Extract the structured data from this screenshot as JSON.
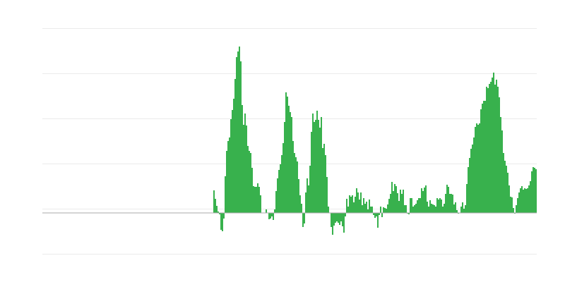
{
  "chart_data": {
    "type": "bar",
    "title": "",
    "xlabel": "",
    "ylabel": "",
    "grid": true,
    "ylim": [
      -98,
      262
    ],
    "colors": {
      "bar": "#38b14d",
      "grid": "#ebebeb",
      "zero_line": "#aaaaaa"
    },
    "values": [
      null,
      null,
      null,
      null,
      null,
      null,
      null,
      null,
      null,
      null,
      null,
      null,
      null,
      null,
      null,
      null,
      null,
      null,
      null,
      null,
      null,
      null,
      null,
      null,
      null,
      null,
      null,
      null,
      null,
      null,
      null,
      null,
      null,
      null,
      null,
      null,
      null,
      null,
      null,
      null,
      null,
      null,
      null,
      null,
      null,
      null,
      null,
      null,
      null,
      null,
      null,
      null,
      null,
      null,
      null,
      null,
      null,
      null,
      null,
      null,
      null,
      null,
      null,
      null,
      null,
      null,
      null,
      null,
      null,
      null,
      null,
      null,
      null,
      null,
      null,
      null,
      null,
      null,
      null,
      null,
      null,
      null,
      null,
      null,
      null,
      null,
      null,
      null,
      null,
      null,
      null,
      null,
      null,
      null,
      null,
      null,
      null,
      null,
      null,
      null,
      null,
      null,
      null,
      null,
      null,
      null,
      null,
      null,
      null,
      null,
      null,
      null,
      null,
      null,
      null,
      null,
      null,
      null,
      null,
      null,
      null,
      32,
      20,
      10,
      2,
      -2,
      -24,
      -26,
      -8,
      52,
      88,
      102,
      107,
      133,
      146,
      162,
      190,
      221,
      229,
      236,
      215,
      153,
      125,
      141,
      124,
      95,
      88,
      85,
      64,
      38,
      37,
      37,
      42,
      37,
      25,
      0,
      0,
      0,
      5,
      0,
      -9,
      -8,
      -5,
      -10,
      5,
      31,
      49,
      61,
      69,
      82,
      99,
      129,
      171,
      165,
      152,
      143,
      136,
      102,
      85,
      79,
      73,
      48,
      25,
      13,
      -20,
      -15,
      29,
      49,
      39,
      67,
      115,
      141,
      129,
      132,
      145,
      132,
      121,
      136,
      92,
      98,
      82,
      51,
      9,
      0,
      -20,
      -31,
      -18,
      -14,
      -12,
      -14,
      -17,
      -12,
      -19,
      -28,
      -5,
      20,
      9,
      25,
      23,
      25,
      15,
      23,
      35,
      29,
      19,
      29,
      11,
      21,
      13,
      16,
      5,
      19,
      9,
      9,
      -3,
      -7,
      -5,
      -21,
      -3,
      9,
      -6,
      8,
      7,
      6,
      12,
      20,
      27,
      44,
      31,
      41,
      38,
      28,
      17,
      33,
      27,
      33,
      11,
      11,
      -1,
      -2,
      21,
      21,
      9,
      11,
      13,
      18,
      21,
      21,
      35,
      31,
      36,
      39,
      16,
      9,
      18,
      13,
      12,
      11,
      9,
      21,
      19,
      21,
      19,
      9,
      13,
      27,
      40,
      37,
      27,
      27,
      26,
      12,
      15,
      4,
      -1,
      0,
      9,
      15,
      6,
      11,
      41,
      65,
      78,
      91,
      97,
      107,
      122,
      127,
      125,
      127,
      147,
      155,
      159,
      159,
      179,
      177,
      183,
      186,
      192,
      199,
      182,
      189,
      179,
      164,
      136,
      117,
      85,
      74,
      67,
      57,
      39,
      23,
      22,
      7,
      -1,
      11,
      21,
      29,
      35,
      38,
      33,
      35,
      34,
      35,
      39,
      45,
      59,
      65,
      64,
      62
    ]
  }
}
